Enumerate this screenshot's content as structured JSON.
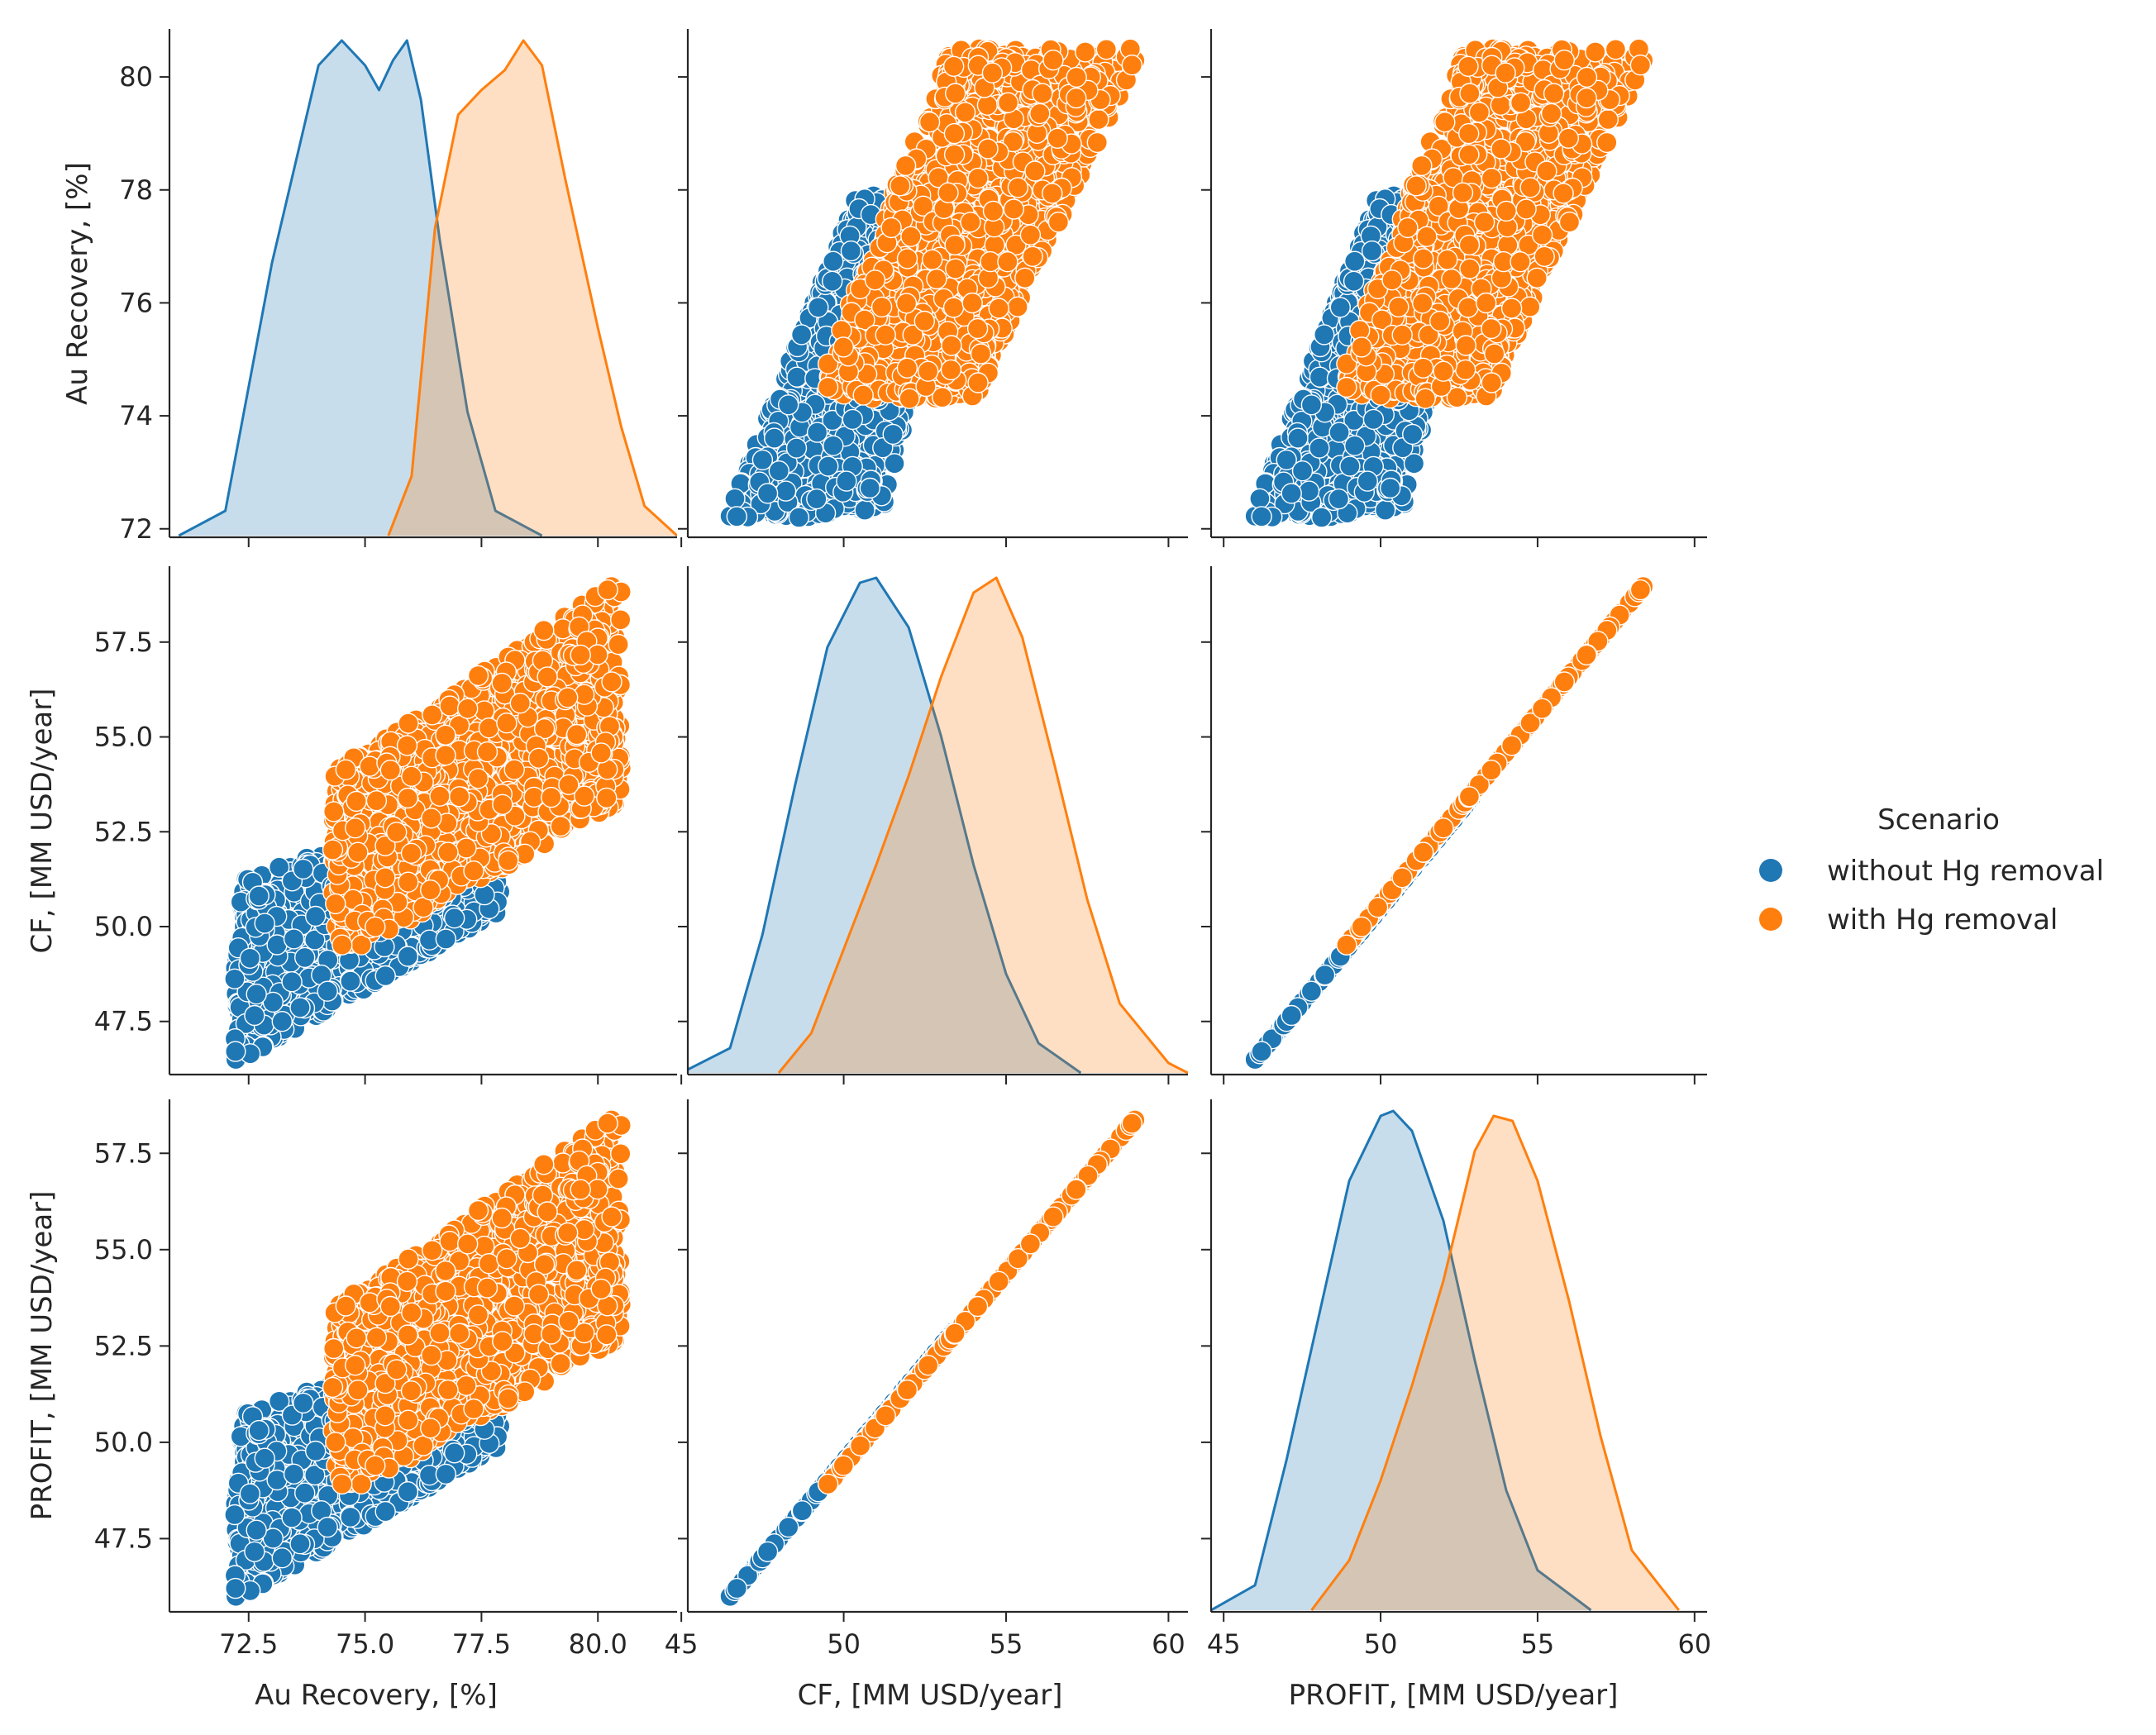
{
  "chart_data": {
    "type": "pairplot",
    "variables": [
      {
        "label": "Au Recovery, [%]",
        "ticks": [
          72.5,
          75.0,
          77.5,
          80.0
        ],
        "tick_labels": [
          "72.5",
          "75.0",
          "77.5",
          "80.0"
        ],
        "y_ticks": [
          72,
          74,
          76,
          78,
          80
        ],
        "y_tick_labels": [
          "72",
          "74",
          "76",
          "78",
          "80"
        ],
        "range": [
          70.8,
          81.7
        ]
      },
      {
        "label": "CF, [MM USD/year]",
        "ticks": [
          45,
          50,
          55,
          60
        ],
        "tick_labels": [
          "45",
          "50",
          "55",
          "60"
        ],
        "y_ticks": [
          47.5,
          50.0,
          52.5,
          55.0,
          57.5
        ],
        "y_tick_labels": [
          "47.5",
          "50.0",
          "52.5",
          "55.0",
          "57.5"
        ],
        "range": [
          45.2,
          60.6
        ]
      },
      {
        "label": "PROFIT, [MM USD/year]",
        "ticks": [
          45,
          50,
          55,
          60
        ],
        "tick_labels": [
          "45",
          "50",
          "55",
          "60"
        ],
        "y_ticks": [
          47.5,
          50.0,
          52.5,
          55.0,
          57.5
        ],
        "y_tick_labels": [
          "47.5",
          "50.0",
          "52.5",
          "55.0",
          "57.5"
        ],
        "range": [
          44.6,
          60.4
        ]
      }
    ],
    "y_ranges": [
      [
        71.85,
        80.85
      ],
      [
        46.1,
        59.5
      ],
      [
        45.6,
        58.9
      ]
    ],
    "hue": "Scenario",
    "series": [
      {
        "name": "without Hg removal",
        "color": "#1f77b4",
        "au_range": [
          72.2,
          77.9
        ],
        "cf_min_at_au": [
          [
            72.2,
            46.4
          ],
          [
            77.9,
            50.4
          ]
        ],
        "cf_max_at_au": [
          [
            72.2,
            51.2
          ],
          [
            77.9,
            53.5
          ]
        ],
        "profit_offset": -0.5,
        "kde_au": [
          [
            71.0,
            0.0
          ],
          [
            72.0,
            0.05
          ],
          [
            73.0,
            0.55
          ],
          [
            74.0,
            0.95
          ],
          [
            74.5,
            1.0
          ],
          [
            75.0,
            0.95
          ],
          [
            75.3,
            0.9
          ],
          [
            75.6,
            0.96
          ],
          [
            75.9,
            1.0
          ],
          [
            76.2,
            0.88
          ],
          [
            76.6,
            0.6
          ],
          [
            77.2,
            0.25
          ],
          [
            77.8,
            0.05
          ],
          [
            78.8,
            0.0
          ]
        ],
        "kde_cf": [
          [
            45.0,
            0.0
          ],
          [
            46.5,
            0.05
          ],
          [
            47.5,
            0.28
          ],
          [
            48.5,
            0.58
          ],
          [
            49.5,
            0.86
          ],
          [
            50.5,
            0.99
          ],
          [
            51.0,
            1.0
          ],
          [
            52.0,
            0.9
          ],
          [
            53.0,
            0.68
          ],
          [
            54.0,
            0.42
          ],
          [
            55.0,
            0.2
          ],
          [
            56.0,
            0.06
          ],
          [
            57.3,
            0.0
          ]
        ],
        "kde_profit": [
          [
            44.6,
            0.0
          ],
          [
            46.0,
            0.05
          ],
          [
            47.0,
            0.3
          ],
          [
            48.0,
            0.58
          ],
          [
            49.0,
            0.86
          ],
          [
            50.0,
            0.99
          ],
          [
            50.4,
            1.0
          ],
          [
            51.0,
            0.96
          ],
          [
            52.0,
            0.78
          ],
          [
            53.0,
            0.5
          ],
          [
            54.0,
            0.24
          ],
          [
            55.0,
            0.08
          ],
          [
            56.7,
            0.0
          ]
        ]
      },
      {
        "name": "with Hg removal",
        "color": "#ff7f0e",
        "au_range": [
          74.3,
          80.5
        ],
        "cf_min_at_au": [
          [
            75.0,
            49.5
          ],
          [
            80.5,
            53.3
          ]
        ],
        "cf_max_at_au": [
          [
            75.0,
            54.6
          ],
          [
            80.5,
            59.2
          ]
        ],
        "profit_offset": -0.6,
        "kde_au": [
          [
            75.5,
            0.0
          ],
          [
            76.0,
            0.12
          ],
          [
            76.5,
            0.62
          ],
          [
            77.0,
            0.85
          ],
          [
            77.5,
            0.9
          ],
          [
            78.0,
            0.94
          ],
          [
            78.4,
            1.0
          ],
          [
            78.8,
            0.95
          ],
          [
            79.3,
            0.72
          ],
          [
            80.0,
            0.42
          ],
          [
            80.5,
            0.22
          ],
          [
            81.0,
            0.06
          ],
          [
            81.7,
            0.0
          ]
        ],
        "kde_cf": [
          [
            48.0,
            0.0
          ],
          [
            49.0,
            0.08
          ],
          [
            50.0,
            0.25
          ],
          [
            51.0,
            0.42
          ],
          [
            52.0,
            0.6
          ],
          [
            53.0,
            0.8
          ],
          [
            54.0,
            0.97
          ],
          [
            54.7,
            1.0
          ],
          [
            55.5,
            0.88
          ],
          [
            56.5,
            0.62
          ],
          [
            57.5,
            0.35
          ],
          [
            58.5,
            0.14
          ],
          [
            60.0,
            0.02
          ],
          [
            60.6,
            0.0
          ]
        ],
        "kde_profit": [
          [
            47.8,
            0.0
          ],
          [
            49.0,
            0.1
          ],
          [
            50.0,
            0.26
          ],
          [
            51.0,
            0.45
          ],
          [
            52.0,
            0.66
          ],
          [
            53.0,
            0.92
          ],
          [
            53.6,
            0.99
          ],
          [
            54.2,
            0.98
          ],
          [
            55.0,
            0.86
          ],
          [
            56.0,
            0.62
          ],
          [
            57.0,
            0.35
          ],
          [
            58.0,
            0.12
          ],
          [
            59.5,
            0.0
          ]
        ]
      }
    ],
    "legend": {
      "title": "Scenario",
      "entries": [
        "without Hg removal",
        "with Hg removal"
      ],
      "placement": "right"
    }
  }
}
